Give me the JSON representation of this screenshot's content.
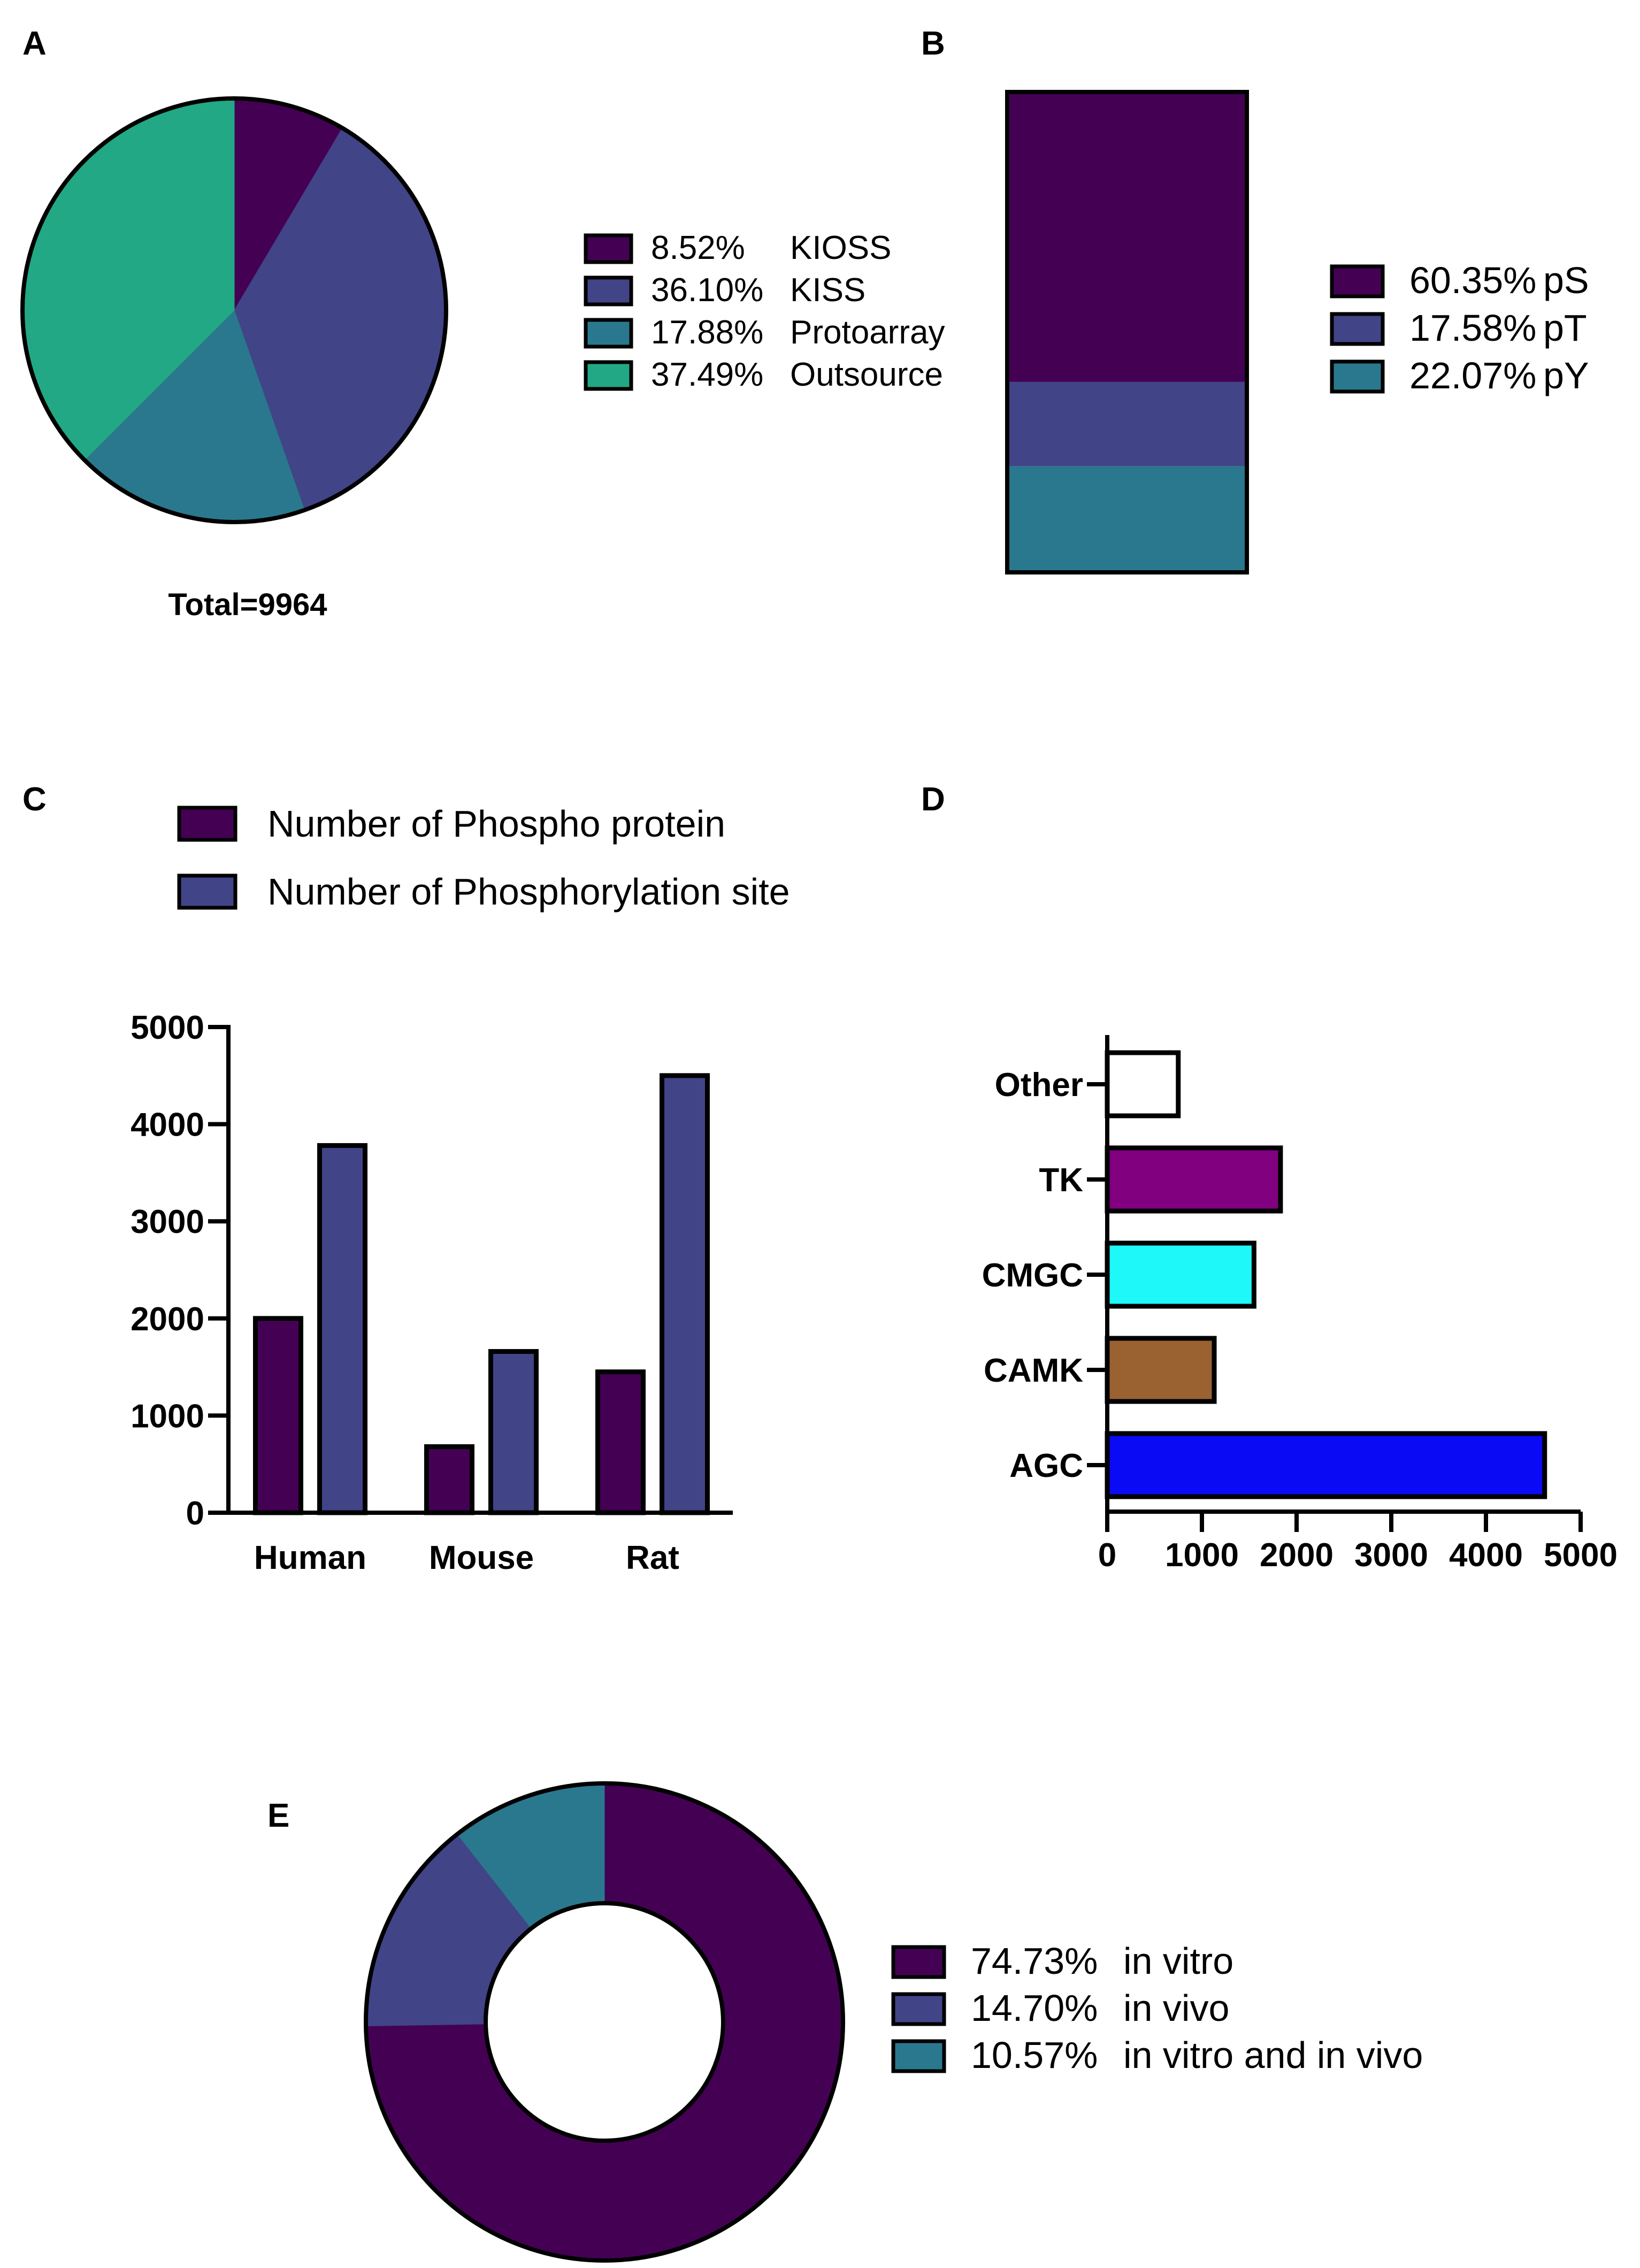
{
  "colors": {
    "purple_dark": "#440154",
    "indigo": "#414487",
    "teal": "#2A788E",
    "green": "#22A884",
    "kinase_other": "#FFFFFF",
    "kinase_tk": "#800080",
    "kinase_cmgc": "#1EF8F8",
    "kinase_camk": "#9A6230",
    "kinase_agc": "#0A0AF5"
  },
  "panels": {
    "a": {
      "label": "A"
    },
    "b": {
      "label": "B"
    },
    "c": {
      "label": "C"
    },
    "d": {
      "label": "D"
    },
    "e": {
      "label": "E"
    }
  },
  "chart_data": [
    {
      "panel": "A",
      "type": "pie",
      "title": "",
      "slices": [
        {
          "name": "KIOSS",
          "percent_label": "8.52%",
          "value": 8.52,
          "color": "#440154"
        },
        {
          "name": "KISS",
          "percent_label": "36.10%",
          "value": 36.1,
          "color": "#414487"
        },
        {
          "name": "Protoarray",
          "percent_label": "17.88%",
          "value": 17.88,
          "color": "#2A788E"
        },
        {
          "name": "Outsource",
          "percent_label": "37.49%",
          "value": 37.49,
          "color": "#22A884"
        }
      ],
      "total_label": "Total=9964",
      "legend_position": "right"
    },
    {
      "panel": "B",
      "type": "bar",
      "stacked": true,
      "categories": [
        ""
      ],
      "series": [
        {
          "name": "pS",
          "percent_label": "60.35%",
          "values": [
            60.35
          ],
          "color": "#440154"
        },
        {
          "name": "pT",
          "percent_label": "17.58%",
          "values": [
            17.58
          ],
          "color": "#414487"
        },
        {
          "name": "pY",
          "percent_label": "22.07%",
          "values": [
            22.07
          ],
          "color": "#2A788E"
        }
      ],
      "ylim": [
        0,
        100
      ],
      "legend_position": "right"
    },
    {
      "panel": "C",
      "type": "bar",
      "categories": [
        "Human",
        "Mouse",
        "Rat"
      ],
      "series": [
        {
          "name": "Number of Phospho protein",
          "values": [
            2000,
            680,
            1450
          ],
          "color": "#440154"
        },
        {
          "name": "Number of Phosphorylation site",
          "values": [
            3780,
            1660,
            4500
          ],
          "color": "#414487"
        }
      ],
      "xlabel": "",
      "ylabel": "",
      "ylim": [
        0,
        5000
      ],
      "yticks": [
        "0",
        "1000",
        "2000",
        "3000",
        "4000",
        "5000"
      ],
      "legend_position": "top"
    },
    {
      "panel": "D",
      "type": "bar",
      "orientation": "horizontal",
      "categories": [
        "Other",
        "TK",
        "CMGC",
        "CAMK",
        "AGC"
      ],
      "values": [
        750,
        1830,
        1550,
        1130,
        4620
      ],
      "colors": [
        "#FFFFFF",
        "#800080",
        "#1EF8F8",
        "#9A6230",
        "#0A0AF5"
      ],
      "xlim": [
        0,
        5000
      ],
      "xticks": [
        "0",
        "1000",
        "2000",
        "3000",
        "4000",
        "5000"
      ]
    },
    {
      "panel": "E",
      "type": "pie",
      "donut": true,
      "slices": [
        {
          "name": "in vitro",
          "percent_label": "74.73%",
          "value": 74.73,
          "color": "#440154"
        },
        {
          "name": "in vivo",
          "percent_label": "14.70%",
          "value": 14.7,
          "color": "#414487"
        },
        {
          "name": "in vitro and in vivo",
          "percent_label": "10.57%",
          "value": 10.57,
          "color": "#2A788E"
        }
      ],
      "legend_position": "right"
    }
  ]
}
